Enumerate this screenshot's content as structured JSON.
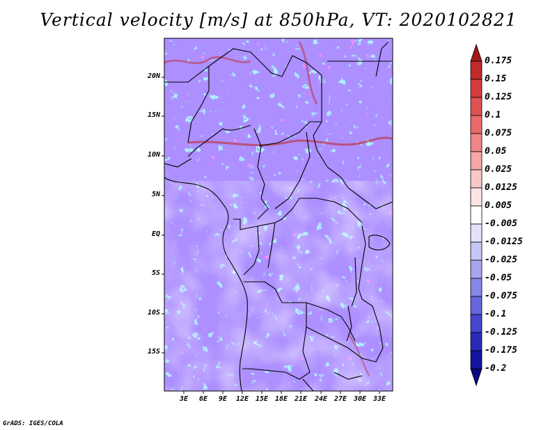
{
  "title": "Vertical velocity [m/s] at 850hPa, VT: 2020102821",
  "credit": "GrADS: IGES/COLA",
  "lat_labels": [
    "20N",
    "15N",
    "10N",
    "5N",
    "EQ",
    "5S",
    "10S",
    "15S"
  ],
  "lon_labels": [
    "3E",
    "6E",
    "9E",
    "12E",
    "15E",
    "18E",
    "21E",
    "24E",
    "27E",
    "30E",
    "33E"
  ],
  "colorbar": {
    "labels": [
      "0.175",
      "0.15",
      "0.125",
      "0.1",
      "0.075",
      "0.05",
      "0.025",
      "0.0125",
      "0.005",
      "-0.005",
      "-0.0125",
      "-0.025",
      "-0.05",
      "-0.075",
      "-0.1",
      "-0.125",
      "-0.175",
      "-0.2"
    ],
    "colors": [
      "#a01818",
      "#c02a2a",
      "#d43c3c",
      "#e05252",
      "#e86a6a",
      "#f08686",
      "#f6a6a6",
      "#fac6c6",
      "#fde4e4",
      "#ffffff",
      "#e2e2fa",
      "#c6c6f4",
      "#a6a6ee",
      "#8686e6",
      "#6666dc",
      "#4646cc",
      "#2a2ab8",
      "#14149c",
      "#0a0a80"
    ]
  }
}
